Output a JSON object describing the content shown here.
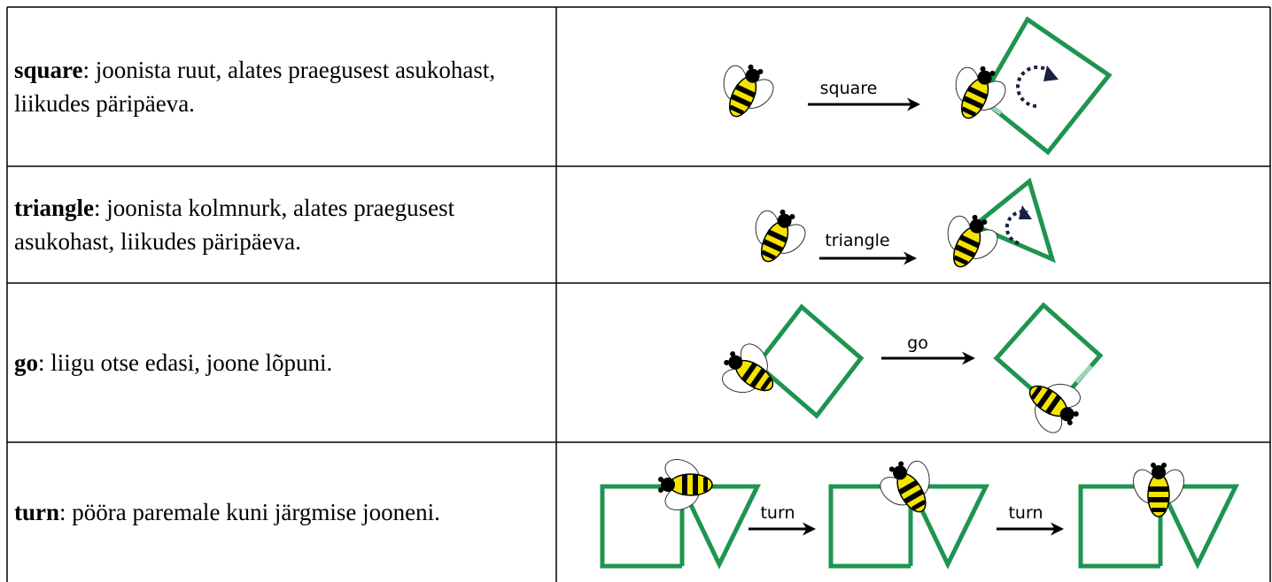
{
  "table": {
    "rows": [
      {
        "command": "square",
        "description": ": joonista ruut, alates praegusest asukohast, liikudes päripäeva.",
        "labels": [
          "square"
        ]
      },
      {
        "command": "triangle",
        "description": ": joonista kolmnurk, alates praegusest asukohast, liikudes päripäeva.",
        "labels": [
          "triangle"
        ]
      },
      {
        "command": "go",
        "description": ": liigu otse edasi, joone lõpuni.",
        "labels": [
          "go"
        ]
      },
      {
        "command": "turn",
        "description": ": pööra paremale kuni järgmise jooneni.",
        "labels": [
          "turn",
          "turn"
        ]
      }
    ]
  }
}
